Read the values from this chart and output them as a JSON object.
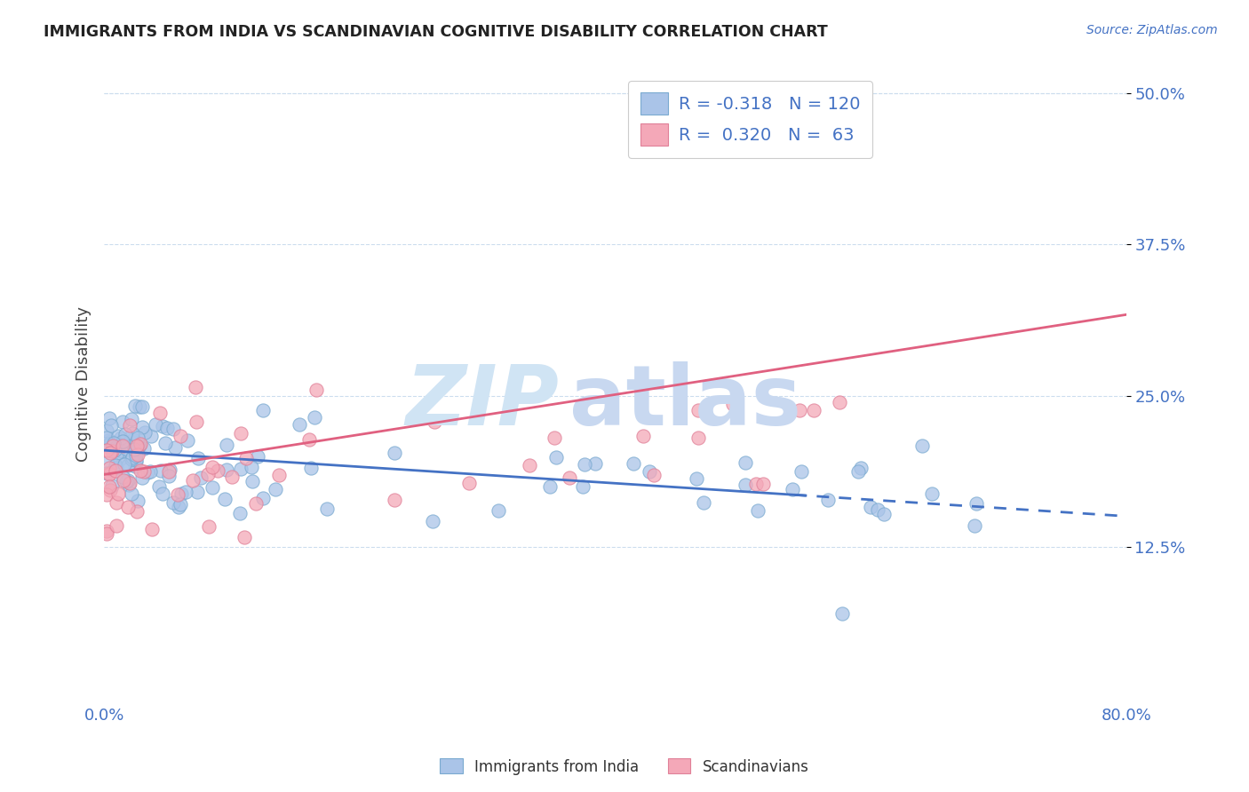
{
  "title": "IMMIGRANTS FROM INDIA VS SCANDINAVIAN COGNITIVE DISABILITY CORRELATION CHART",
  "source": "Source: ZipAtlas.com",
  "ylabel": "Cognitive Disability",
  "ytick_vals": [
    0.125,
    0.25,
    0.375,
    0.5
  ],
  "ytick_labels": [
    "12.5%",
    "25.0%",
    "37.5%",
    "50.0%"
  ],
  "xlim": [
    0.0,
    0.8
  ],
  "ylim": [
    0.0,
    0.52
  ],
  "legend_R1": "-0.318",
  "legend_N1": "120",
  "legend_R2": "0.320",
  "legend_N2": "63",
  "blue_face": "#aac4e8",
  "blue_edge": "#7aaad0",
  "pink_face": "#f4a8b8",
  "pink_edge": "#e08098",
  "trend_blue": "#4472c4",
  "trend_pink": "#e06080",
  "grid_color": "#ccddee",
  "tick_color": "#4472c4",
  "ylabel_color": "#444444",
  "title_color": "#222222",
  "source_color": "#4472c4",
  "watermark_zip_color": "#d0e4f4",
  "watermark_atlas_color": "#c8d8f0"
}
